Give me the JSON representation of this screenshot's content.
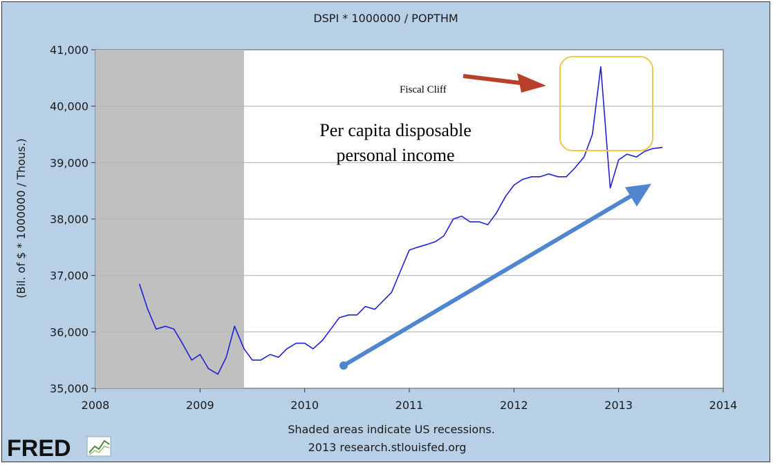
{
  "chart_data": {
    "type": "line",
    "title": "DSPI * 1000000 / POPTHM",
    "xlabel": "",
    "ylabel": "(Bil. of $ * 1000000 / Thous.)",
    "xlim": [
      2008,
      2014
    ],
    "ylim": [
      35000,
      41000
    ],
    "x_ticks": [
      "2008",
      "2009",
      "2010",
      "2011",
      "2012",
      "2013",
      "2014"
    ],
    "y_ticks": [
      "35,000",
      "36,000",
      "37,000",
      "38,000",
      "39,000",
      "40,000",
      "41,000"
    ],
    "grid": true,
    "recession_shading": [
      [
        2008.0,
        2009.42
      ]
    ],
    "line_color": "#1f1fd6",
    "series": [
      {
        "x": [
          2008.42,
          2008.5,
          2008.58,
          2008.67,
          2008.75,
          2008.83,
          2008.92,
          2009.0,
          2009.08,
          2009.17,
          2009.25,
          2009.33,
          2009.42,
          2009.5,
          2009.58,
          2009.67,
          2009.75,
          2009.83,
          2009.92,
          2010.0,
          2010.08,
          2010.17,
          2010.25,
          2010.33,
          2010.42,
          2010.5,
          2010.58,
          2010.67,
          2010.75,
          2010.83,
          2010.92,
          2011.0,
          2011.08,
          2011.17,
          2011.25,
          2011.33,
          2011.42,
          2011.5,
          2011.58,
          2011.67,
          2011.75,
          2011.83,
          2011.92,
          2012.0,
          2012.08,
          2012.17,
          2012.25,
          2012.33,
          2012.42,
          2012.5,
          2012.58,
          2012.67,
          2012.75,
          2012.83,
          2012.92,
          2013.0,
          2013.08,
          2013.17,
          2013.25,
          2013.33,
          2013.42
        ],
        "values": [
          36850,
          36400,
          36050,
          36100,
          36050,
          35800,
          35500,
          35600,
          35350,
          35250,
          35550,
          36100,
          35700,
          35500,
          35500,
          35600,
          35550,
          35700,
          35800,
          35800,
          35700,
          35850,
          36050,
          36250,
          36300,
          36300,
          36450,
          36400,
          36550,
          36700,
          37100,
          37450,
          37500,
          37550,
          37600,
          37700,
          38000,
          38050,
          37950,
          37950,
          37900,
          38100,
          38400,
          38600,
          38700,
          38750,
          38750,
          38800,
          38750,
          38750,
          38900,
          39100,
          39500,
          40700,
          38550,
          39050,
          39150,
          39100,
          39200,
          39250,
          39270
        ]
      }
    ]
  },
  "annotations": {
    "fiscal_cliff": "Fiscal Cliff",
    "income_line1": "Per capita disposable",
    "income_line2": "personal income"
  },
  "footer": {
    "line1": "Shaded areas indicate US recessions.",
    "line2": "2013 research.stlouisfed.org"
  },
  "logo": {
    "text": "FRED",
    "icon": "fred-chart-icon"
  },
  "colors": {
    "frame_bg": "#b8d0e6",
    "recession": "#c0c0c0",
    "arrow_red": "#b8402a",
    "arrow_blue": "#4f86cf",
    "highlight_box": "#f1c550"
  }
}
